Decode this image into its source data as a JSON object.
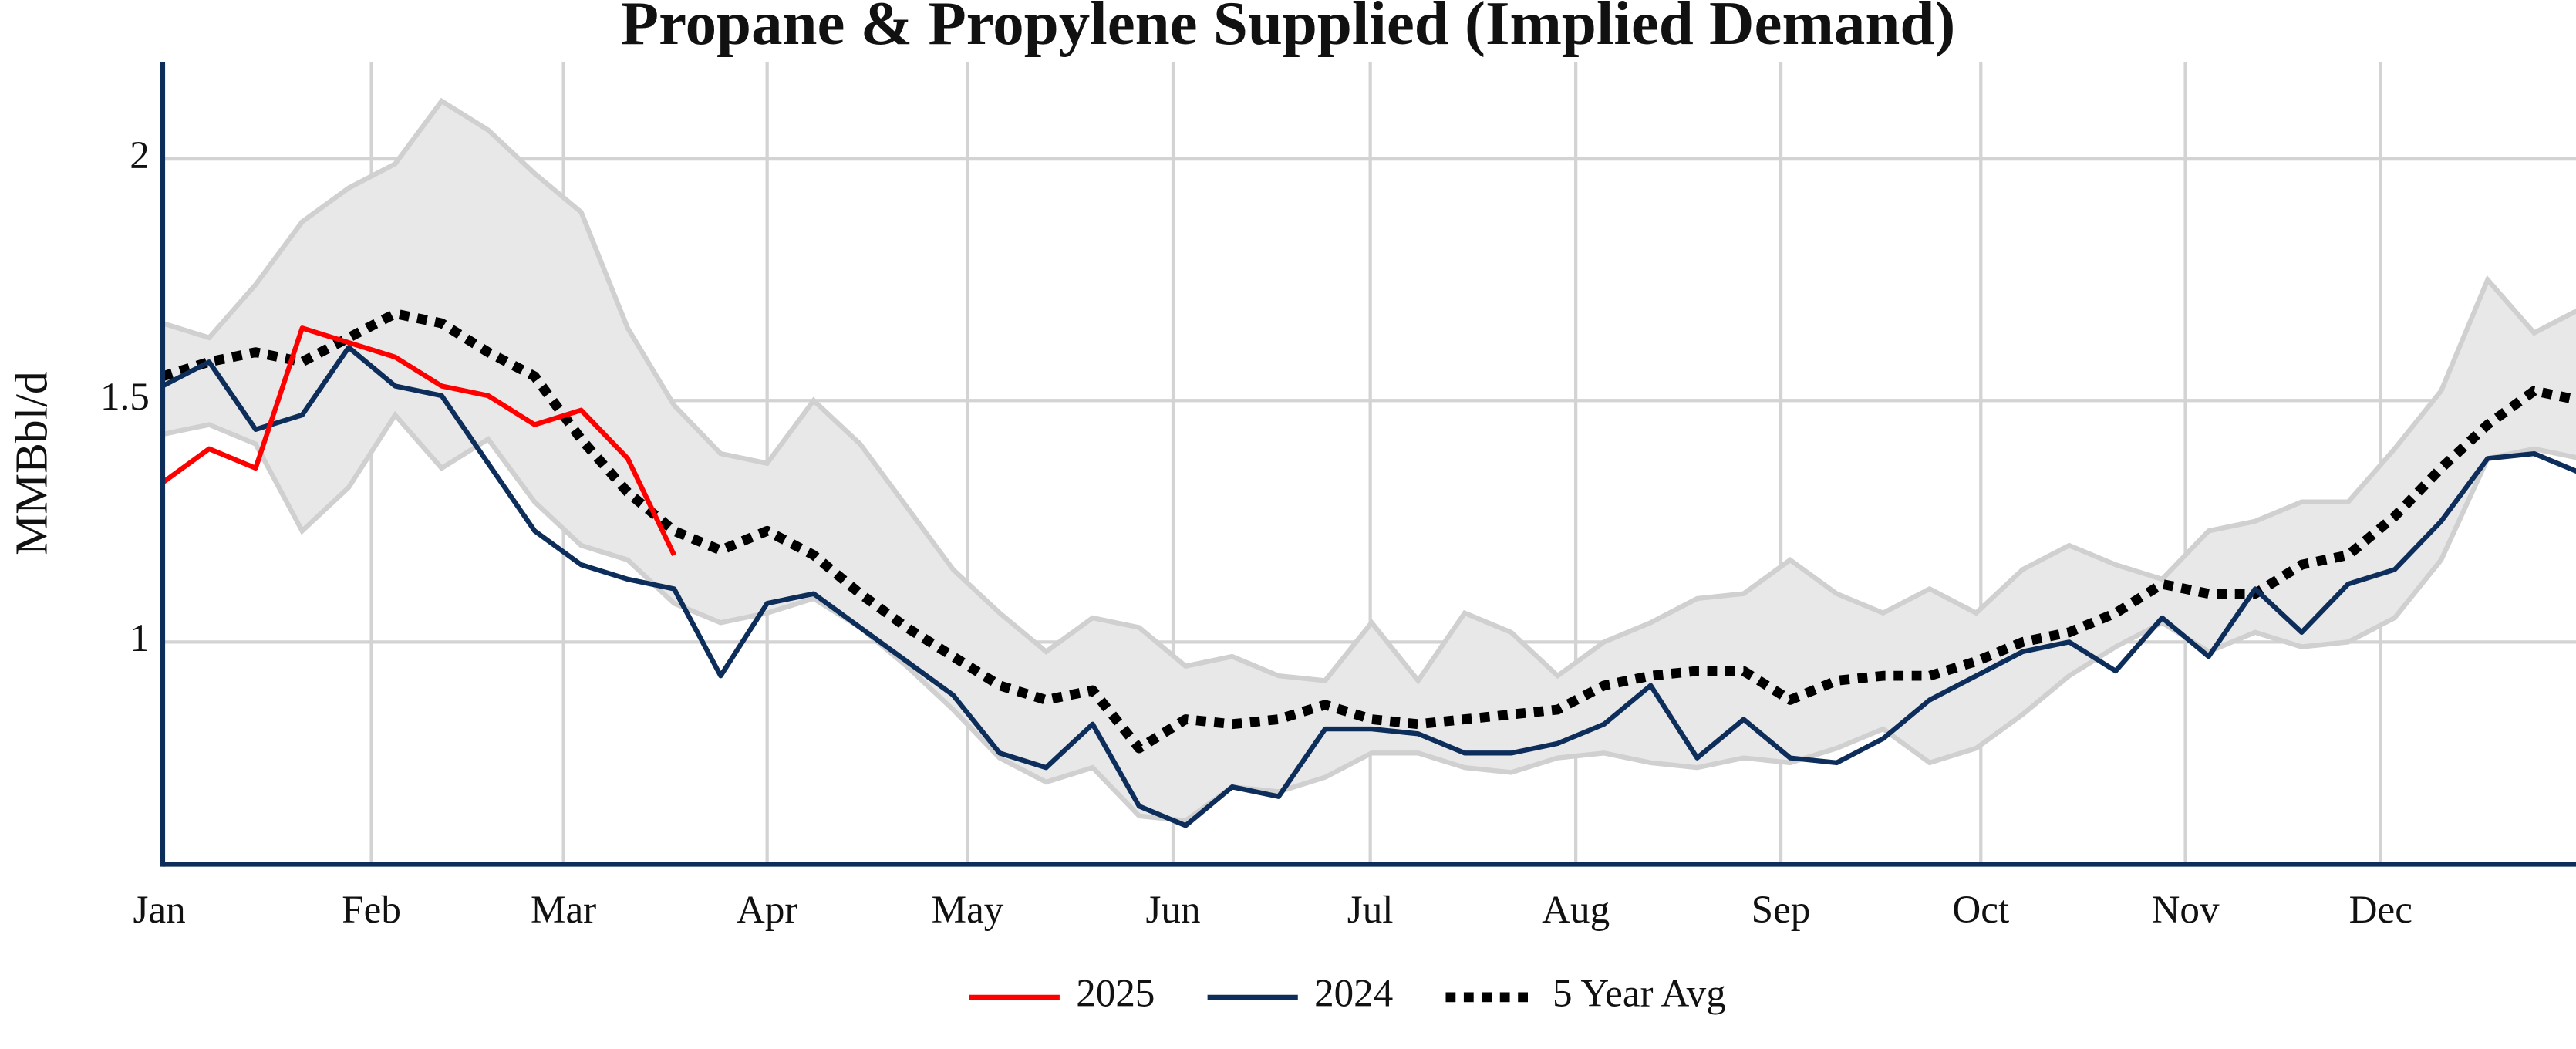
{
  "chart_data": {
    "type": "line",
    "title": "Propane & Propylene Supplied (Implied Demand)",
    "y_label": "MMBbl/d",
    "x": [
      1,
      2,
      3,
      4,
      5,
      6,
      7,
      8,
      9,
      10,
      11,
      12,
      13,
      14,
      15,
      16,
      17,
      18,
      19,
      20,
      21,
      22,
      23,
      24,
      25,
      26,
      27,
      28,
      29,
      30,
      31,
      32,
      33,
      34,
      35,
      36,
      37,
      38,
      39,
      40,
      41,
      42,
      43,
      44,
      45,
      46,
      47,
      48,
      49,
      50,
      51,
      52,
      53
    ],
    "xlim": [
      1,
      52.9
    ],
    "xticks": [
      {
        "value": 1,
        "label": "Jan"
      },
      {
        "value": 5.49,
        "label": "Feb"
      },
      {
        "value": 9.62,
        "label": "Mar"
      },
      {
        "value": 14.0,
        "label": "Apr"
      },
      {
        "value": 18.31,
        "label": "May"
      },
      {
        "value": 22.73,
        "label": "Jun"
      },
      {
        "value": 26.97,
        "label": "Jul"
      },
      {
        "value": 31.39,
        "label": "Aug"
      },
      {
        "value": 35.8,
        "label": "Sep"
      },
      {
        "value": 40.1,
        "label": "Oct"
      },
      {
        "value": 44.5,
        "label": "Nov"
      },
      {
        "value": 48.7,
        "label": "Dec"
      }
    ],
    "ylim": [
      0.54,
      2.2
    ],
    "yticks": [
      1,
      1.5,
      2
    ],
    "grid": true,
    "range": {
      "color": "#e8e8e8",
      "line_color": "#d0d0d0",
      "upper": [
        1.66,
        1.63,
        1.74,
        1.87,
        1.94,
        1.99,
        2.12,
        2.06,
        1.97,
        1.89,
        1.65,
        1.49,
        1.39,
        1.37,
        1.5,
        1.41,
        1.28,
        1.15,
        1.06,
        0.98,
        1.05,
        1.03,
        0.95,
        0.97,
        0.93,
        0.92,
        1.04,
        0.92,
        1.06,
        1.02,
        0.93,
        1.0,
        1.04,
        1.09,
        1.1,
        1.17,
        1.1,
        1.06,
        1.11,
        1.06,
        1.15,
        1.2,
        1.16,
        1.13,
        1.23,
        1.25,
        1.29,
        1.29,
        1.4,
        1.52,
        1.75,
        1.64,
        1.69
      ],
      "lower": [
        1.43,
        1.45,
        1.41,
        1.23,
        1.32,
        1.47,
        1.36,
        1.42,
        1.29,
        1.2,
        1.17,
        1.08,
        1.04,
        1.06,
        1.09,
        1.03,
        0.95,
        0.86,
        0.76,
        0.71,
        0.74,
        0.64,
        0.63,
        0.7,
        0.69,
        0.72,
        0.77,
        0.77,
        0.74,
        0.73,
        0.76,
        0.77,
        0.75,
        0.74,
        0.76,
        0.75,
        0.78,
        0.82,
        0.75,
        0.78,
        0.85,
        0.93,
        0.99,
        1.04,
        0.98,
        1.02,
        0.99,
        1.0,
        1.05,
        1.17,
        1.38,
        1.4,
        1.38
      ]
    },
    "series": [
      {
        "name": "2025",
        "color": "#ff0000",
        "dash": false,
        "values": [
          1.33,
          1.4,
          1.36,
          1.65,
          1.62,
          1.59,
          1.53,
          1.51,
          1.45,
          1.48,
          1.38,
          1.18,
          null,
          null,
          null,
          null,
          null,
          null,
          null,
          null,
          null,
          null,
          null,
          null,
          null,
          null,
          null,
          null,
          null,
          null,
          null,
          null,
          null,
          null,
          null,
          null,
          null,
          null,
          null,
          null,
          null,
          null,
          null,
          null,
          null,
          null,
          null,
          null,
          null,
          null,
          null,
          null,
          null
        ]
      },
      {
        "name": "2024",
        "color": "#0d2d5b",
        "dash": false,
        "values": [
          1.53,
          1.58,
          1.44,
          1.47,
          1.61,
          1.53,
          1.51,
          1.37,
          1.23,
          1.16,
          1.13,
          1.11,
          0.93,
          1.08,
          1.1,
          1.03,
          0.96,
          0.89,
          0.77,
          0.74,
          0.83,
          0.66,
          0.62,
          0.7,
          0.68,
          0.82,
          0.82,
          0.81,
          0.77,
          0.77,
          0.79,
          0.83,
          0.91,
          0.76,
          0.84,
          0.76,
          0.75,
          0.8,
          0.88,
          0.93,
          0.98,
          1.0,
          0.94,
          1.05,
          0.97,
          1.11,
          1.02,
          1.12,
          1.15,
          1.25,
          1.38,
          1.39,
          1.35
        ]
      },
      {
        "name": "5 Year Avg",
        "color": "#000000",
        "dash": true,
        "values": [
          1.55,
          1.58,
          1.6,
          1.58,
          1.63,
          1.68,
          1.66,
          1.6,
          1.55,
          1.42,
          1.31,
          1.23,
          1.19,
          1.23,
          1.18,
          1.1,
          1.03,
          0.97,
          0.91,
          0.88,
          0.9,
          0.78,
          0.84,
          0.83,
          0.84,
          0.87,
          0.84,
          0.83,
          0.84,
          0.85,
          0.86,
          0.91,
          0.93,
          0.94,
          0.94,
          0.88,
          0.92,
          0.93,
          0.93,
          0.96,
          1.0,
          1.02,
          1.06,
          1.12,
          1.1,
          1.1,
          1.16,
          1.18,
          1.26,
          1.36,
          1.45,
          1.52,
          1.5
        ]
      }
    ]
  }
}
